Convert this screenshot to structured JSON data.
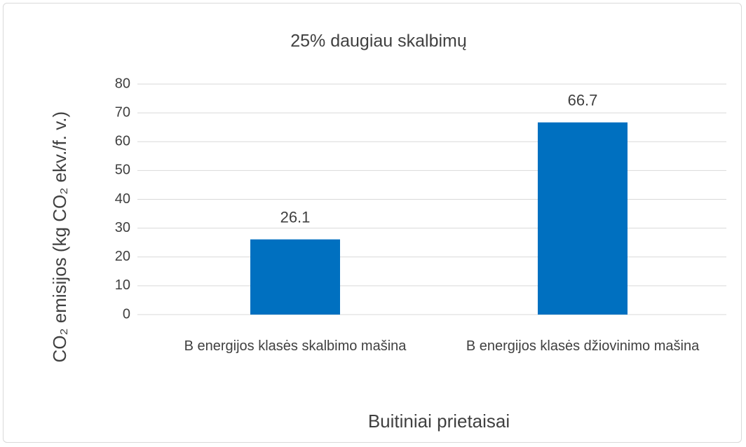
{
  "chart_data": {
    "type": "bar",
    "title": "25% daugiau skalbimų",
    "x_label": "Buitiniai prietaisai",
    "y_label": "CO₂ emisijos (kg CO₂ ekv./f. v.)",
    "categories": [
      "B energijos klasės skalbimo mašina",
      "B energijos klasės džiovinimo mašina"
    ],
    "values": [
      26.1,
      66.7
    ],
    "color": "#0070c0",
    "ylim": [
      0,
      80
    ],
    "yticks": [
      0,
      10,
      20,
      30,
      40,
      50,
      60,
      70,
      80
    ],
    "grid": true
  }
}
